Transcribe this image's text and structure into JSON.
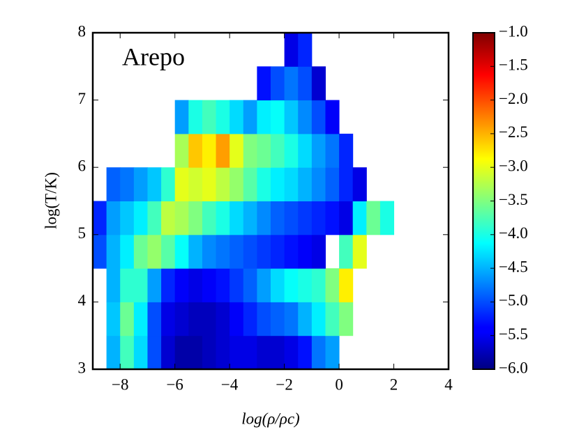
{
  "chart_data": {
    "type": "heatmap",
    "annotation": "Arepo",
    "xlabel": "log(ρ/ρc)",
    "ylabel": "log(T/K)",
    "xlim": [
      -9,
      4
    ],
    "ylim": [
      3,
      8
    ],
    "xticks": [
      {
        "value": -8,
        "label": "−8"
      },
      {
        "value": -6,
        "label": "−6"
      },
      {
        "value": -4,
        "label": "−4"
      },
      {
        "value": -2,
        "label": "−2"
      },
      0,
      2,
      4
    ],
    "yticks": [
      3,
      4,
      5,
      6,
      7,
      8
    ],
    "clim": [
      -6,
      -1
    ],
    "colormap": "jet",
    "cticks": [
      {
        "value": -1,
        "label": "−1.0"
      },
      {
        "value": -1.5,
        "label": "−1.5"
      },
      {
        "value": -2,
        "label": "−2.0"
      },
      {
        "value": -2.5,
        "label": "−2.5"
      },
      {
        "value": -3,
        "label": "−3.0"
      },
      {
        "value": -3.5,
        "label": "−3.5"
      },
      {
        "value": -4,
        "label": "−4.0"
      },
      {
        "value": -4.5,
        "label": "−4.5"
      },
      {
        "value": -5,
        "label": "−5.0"
      },
      {
        "value": -5.5,
        "label": "−5.5"
      },
      {
        "value": -6,
        "label": "−6.0"
      }
    ],
    "xbins": [
      -9,
      -8.5,
      -8,
      -7.5,
      -7,
      -6.5,
      -6,
      -5.5,
      -5,
      -4.5,
      -4,
      -3.5,
      -3,
      -2.5,
      -2,
      -1.5,
      -1,
      -0.5,
      0,
      0.5,
      1,
      1.5,
      2
    ],
    "ybins": [
      3,
      3.5,
      4,
      4.5,
      5,
      5.5,
      6,
      6.5,
      7,
      7.5,
      8
    ],
    "z": [
      [
        null,
        -4.5,
        -3.8,
        -4.3,
        -5.0,
        -5.6,
        -5.8,
        -5.8,
        -5.7,
        -5.6,
        -5.5,
        -5.5,
        -5.6,
        -5.6,
        -5.5,
        -5.3,
        -4.8,
        -4.6,
        null,
        null,
        null,
        null
      ],
      [
        null,
        -4.4,
        -3.6,
        -4.2,
        -5.0,
        -5.5,
        -5.6,
        -5.7,
        -5.7,
        -5.6,
        -5.4,
        -5.2,
        -5.0,
        -4.9,
        -4.8,
        -4.5,
        -4.2,
        -3.8,
        -3.5,
        null,
        null,
        null
      ],
      [
        null,
        -4.5,
        -3.9,
        -3.9,
        -4.6,
        -5.2,
        -5.4,
        -5.5,
        -5.4,
        -5.3,
        -5.1,
        -4.9,
        -4.6,
        -4.3,
        -4.1,
        -4.0,
        -3.9,
        -3.5,
        -2.8,
        null,
        null,
        null
      ],
      [
        -5.0,
        -4.5,
        -4.2,
        -3.6,
        -3.4,
        -3.7,
        -4.1,
        -4.5,
        -4.7,
        -4.8,
        -4.9,
        -5.0,
        -5.1,
        -5.2,
        -5.3,
        -5.4,
        -5.5,
        null,
        -3.8,
        -3.0,
        null,
        null
      ],
      [
        -5.2,
        -4.6,
        -4.4,
        -4.2,
        -3.8,
        -3.2,
        -3.3,
        -3.5,
        -3.8,
        -4.0,
        -4.3,
        -4.5,
        -4.7,
        -4.9,
        -5.0,
        -5.1,
        -5.2,
        -5.3,
        -5.5,
        -4.2,
        -3.6,
        -4.0
      ],
      [
        null,
        -4.9,
        -4.8,
        -4.6,
        -4.4,
        -3.9,
        -3.0,
        -3.1,
        -3.0,
        -3.2,
        -3.4,
        -3.7,
        -4.0,
        -4.2,
        -4.3,
        -4.5,
        -4.7,
        -4.9,
        -5.2,
        -5.5,
        null,
        null
      ],
      [
        null,
        null,
        null,
        null,
        null,
        null,
        -3.3,
        -2.6,
        -2.8,
        -2.4,
        -3.0,
        -3.5,
        -3.6,
        -3.8,
        -4.0,
        -4.3,
        -4.6,
        -4.8,
        -5.2,
        null,
        null,
        null
      ],
      [
        null,
        null,
        null,
        null,
        null,
        null,
        -4.6,
        -4.0,
        -3.8,
        -4.0,
        -4.3,
        -4.6,
        -4.2,
        -4.1,
        -4.4,
        -4.7,
        -5.0,
        -5.4,
        null,
        null,
        null,
        null
      ],
      [
        null,
        null,
        null,
        null,
        null,
        null,
        null,
        null,
        null,
        null,
        null,
        null,
        -5.3,
        -5.0,
        -4.8,
        -5.0,
        -5.6,
        null,
        null,
        null,
        null,
        null
      ],
      [
        null,
        null,
        null,
        null,
        null,
        null,
        null,
        null,
        null,
        null,
        null,
        null,
        null,
        null,
        -5.5,
        -5.2,
        null,
        null,
        null,
        null,
        null,
        null
      ]
    ]
  }
}
